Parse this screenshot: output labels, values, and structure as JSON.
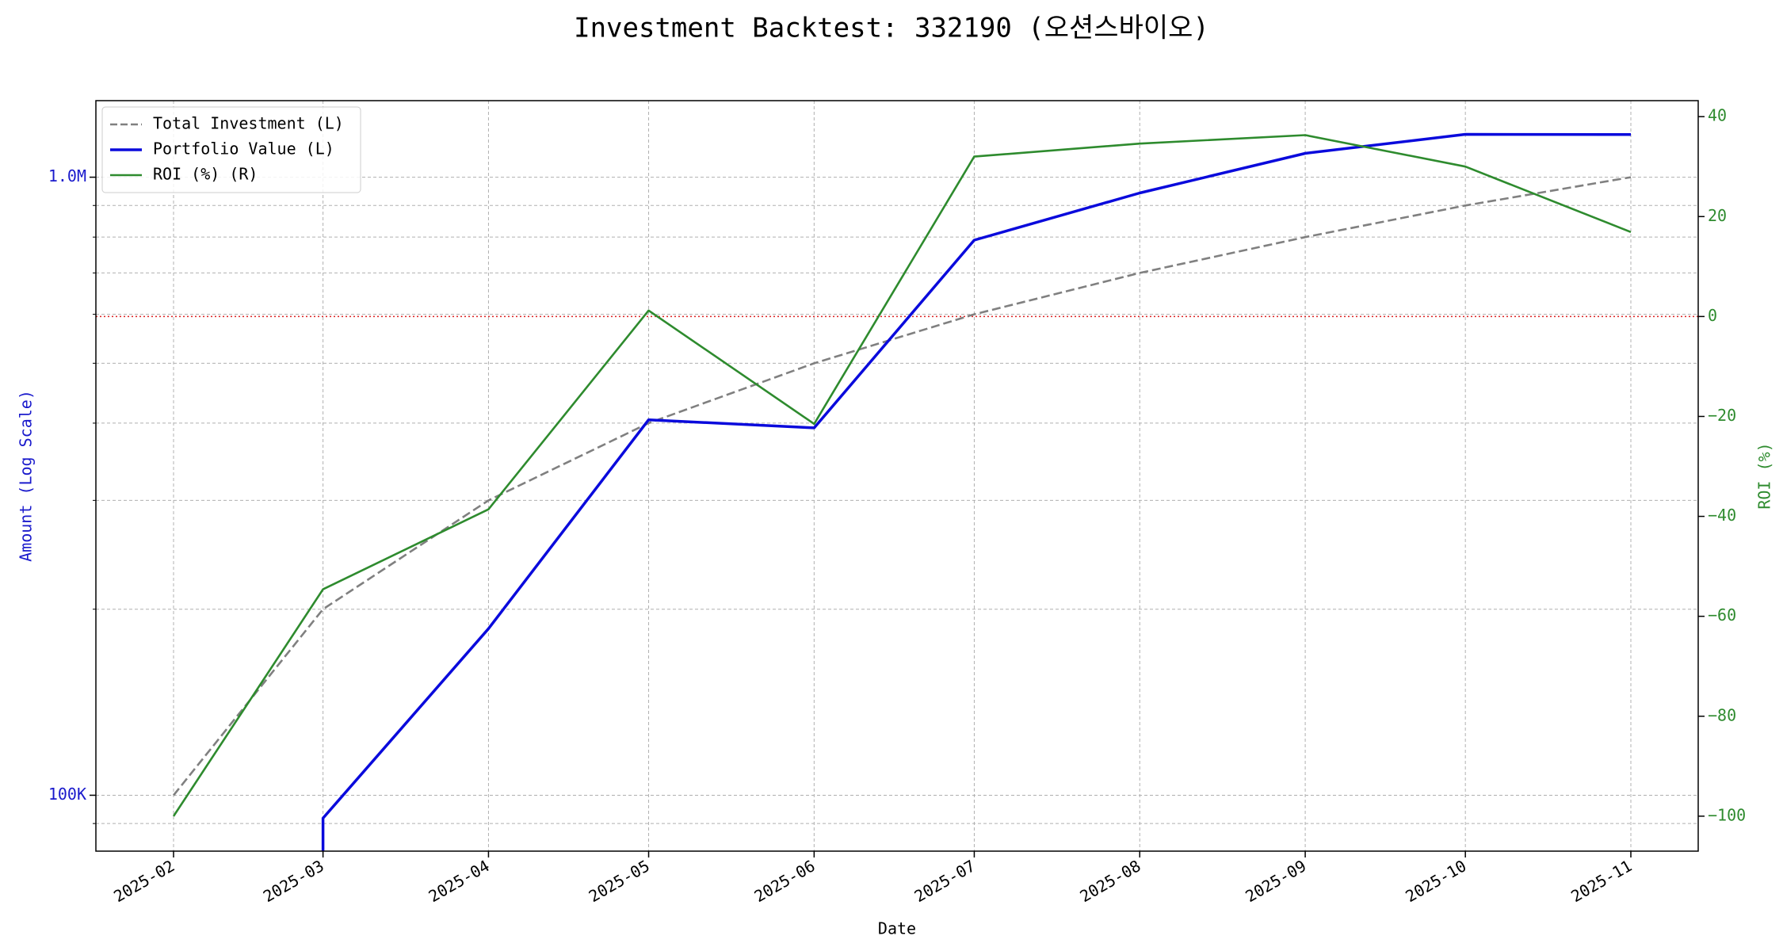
{
  "chart_data": {
    "type": "line",
    "title": "Investment Backtest: 332190 (오션스바이오)",
    "xlabel": "Date",
    "ylabel": "Amount (Log Scale)",
    "y2label": "ROI (%)",
    "ylabel_color": "#1a1acc",
    "y2label_color": "#2e8b2e",
    "x": [
      "2025-02",
      "2025-03",
      "2025-04",
      "2025-05",
      "2025-06",
      "2025-07",
      "2025-08",
      "2025-09",
      "2025-10",
      "2025-11"
    ],
    "xticks": [
      "2025-02",
      "2025-03",
      "2025-04",
      "2025-05",
      "2025-06",
      "2025-07",
      "2025-08",
      "2025-09",
      "2025-10",
      "2025-11"
    ],
    "ylog": true,
    "ylim": [
      81200,
      1330000
    ],
    "yticks": [
      {
        "value": 100000,
        "label": "100K"
      },
      {
        "value": 1000000,
        "label": "1.0M"
      }
    ],
    "yminorticks": [
      90000,
      200000,
      300000,
      400000,
      500000,
      600000,
      700000,
      800000,
      900000
    ],
    "y2lim": [
      -107,
      43.2
    ],
    "y2ticks": [
      {
        "value": -100,
        "label": "−100"
      },
      {
        "value": -80,
        "label": "−80"
      },
      {
        "value": -60,
        "label": "−60"
      },
      {
        "value": -40,
        "label": "−40"
      },
      {
        "value": -20,
        "label": "−20"
      },
      0,
      20,
      40
    ],
    "y2refline": {
      "value": 0,
      "color": "#dd2222"
    },
    "grid": true,
    "legend": "upper left",
    "series": [
      {
        "name": "Total Investment (L)",
        "color": "#808080",
        "linestyle": "dashed",
        "axis": "y",
        "values": [
          100000,
          200000,
          300000,
          400000,
          500000,
          600000,
          700000,
          800000,
          900000,
          1000000
        ]
      },
      {
        "name": "Portfolio Value (L)",
        "color": "#0a0adc",
        "linestyle": "solid",
        "axis": "y",
        "values": [
          0,
          91800,
          186000,
          405000,
          393000,
          791000,
          943000,
          1093000,
          1173000,
          1172000
        ]
      },
      {
        "name": "ROI (%) (R)",
        "color": "#2e8b2e",
        "linestyle": "solid",
        "axis": "y2",
        "values": [
          -100,
          -54.6,
          -38.6,
          1.2,
          -21.5,
          32.0,
          34.6,
          36.3,
          30.0,
          16.9
        ]
      }
    ]
  }
}
